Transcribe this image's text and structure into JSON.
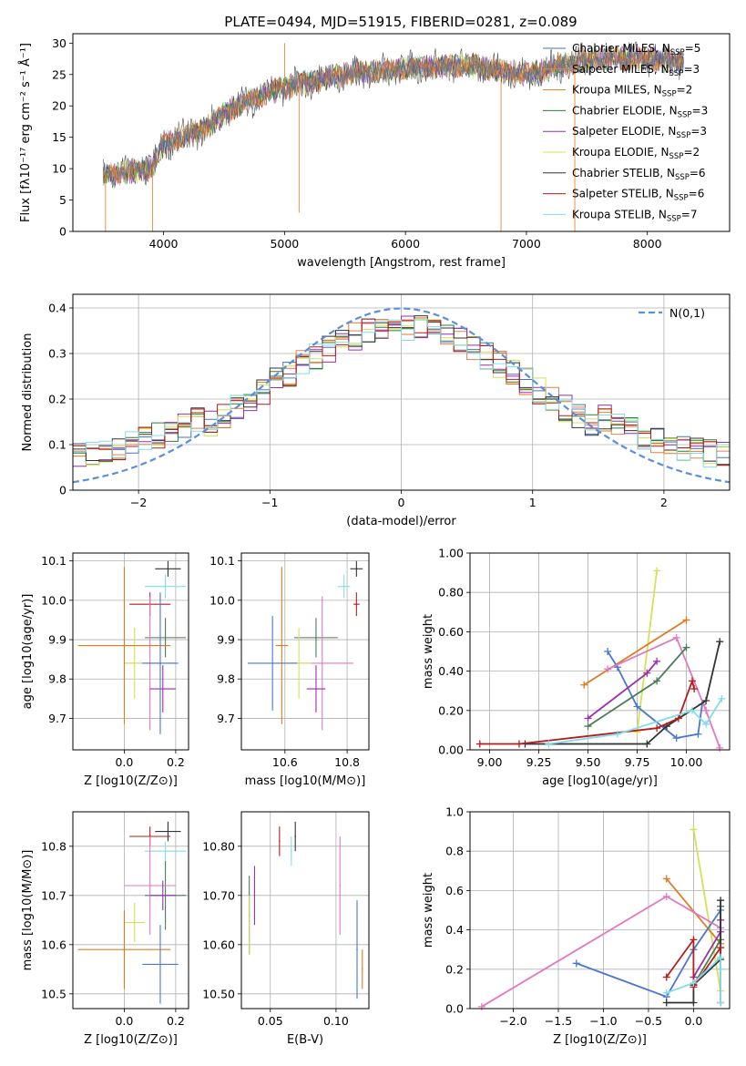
{
  "chart_data": [
    {
      "type": "line",
      "id": "spectrum",
      "title": "PLATE=0494, MJD=51915, FIBERID=0281, z=0.089",
      "xlabel": "wavelength [Angstrom, rest frame]",
      "ylabel": "Flux [fλ10⁻¹⁷ erg cm⁻² s⁻¹ Å⁻¹]",
      "xlim": [
        3250,
        8680
      ],
      "ylim": [
        0,
        31.5
      ],
      "xticks": [
        4000,
        5000,
        6000,
        7000,
        8000
      ],
      "yticks": [
        0,
        5,
        10,
        15,
        20,
        25,
        30
      ],
      "x_range_data": [
        3500,
        8300
      ],
      "continuum": {
        "x": [
          3500,
          3900,
          4000,
          4300,
          4600,
          5000,
          5500,
          6000,
          6500,
          7000,
          7500,
          8000,
          8300
        ],
        "y": [
          9,
          10,
          14,
          16,
          20,
          23,
          25,
          26,
          26.5,
          25,
          27.5,
          27.5,
          27
        ]
      },
      "legend_location": "upper right",
      "series": [
        {
          "name": "Chabrier MILES, N",
          "suffix": "=5",
          "color": "#4c72b0"
        },
        {
          "name": "Salpeter MILES, N",
          "suffix": "=3",
          "color": "#dd8452"
        },
        {
          "name": "Kroupa MILES, N",
          "suffix": "=2",
          "color": "#e07b20"
        },
        {
          "name": "Chabrier ELODIE, N",
          "suffix": "=3",
          "color": "#2e7d32"
        },
        {
          "name": "Salpeter ELODIE, N",
          "suffix": "=3",
          "color": "#9b2fae"
        },
        {
          "name": "Kroupa ELODIE, N",
          "suffix": "=2",
          "color": "#d4e157"
        },
        {
          "name": "Chabrier STELIB, N",
          "suffix": "=6",
          "color": "#333333"
        },
        {
          "name": "Salpeter STELIB, N",
          "suffix": "=6",
          "color": "#b71c1c"
        },
        {
          "name": "Kroupa STELIB, N",
          "suffix": "=7",
          "color": "#80deea"
        }
      ]
    },
    {
      "type": "area",
      "id": "residuals",
      "xlabel": "(data-model)/error",
      "ylabel": "Normed distribution",
      "xlim": [
        -2.5,
        2.5
      ],
      "ylim": [
        0,
        0.43
      ],
      "xticks": [
        -2,
        -1,
        0,
        1,
        2
      ],
      "yticks": [
        0.0,
        0.1,
        0.2,
        0.3,
        0.4
      ],
      "reference_curve": {
        "name": "N(0,1)",
        "color": "#5b8fd9",
        "style": "dashed"
      },
      "legend_location": "upper right",
      "bin_width": 0.1
    },
    {
      "type": "scatter",
      "id": "age-vs-Z",
      "xlabel": "Z [log10(Z/Z⊙)]",
      "ylabel": "age  [log10(age/yr)]",
      "xlim": [
        -0.2,
        0.25
      ],
      "ylim": [
        9.62,
        10.12
      ],
      "xticks": [
        0.0,
        0.2
      ],
      "yticks": [
        9.7,
        9.8,
        9.9,
        10.0,
        10.1
      ],
      "points": [
        {
          "x": 0.1,
          "y": 9.99,
          "xerr": 0.08,
          "yerr": 0.03,
          "color": "#b71c1c"
        },
        {
          "x": 0.17,
          "y": 10.08,
          "xerr": 0.05,
          "yerr": 0.02,
          "color": "#333333"
        },
        {
          "x": 0.16,
          "y": 10.035,
          "xerr": 0.08,
          "yerr": 0.03,
          "color": "#80deea"
        },
        {
          "x": 0.16,
          "y": 9.905,
          "xerr": 0.08,
          "yerr": 0.05,
          "color": "#4a7c59"
        },
        {
          "x": 0.1,
          "y": 9.84,
          "xerr": 0.1,
          "yerr": 0.17,
          "color": "#e377c2"
        },
        {
          "x": 0.15,
          "y": 9.775,
          "xerr": 0.05,
          "yerr": 0.06,
          "color": "#9b2fae"
        },
        {
          "x": 0.04,
          "y": 9.84,
          "xerr": 0.04,
          "yerr": 0.09,
          "color": "#d4e157"
        },
        {
          "x": 0.0,
          "y": 9.885,
          "xerr": 0.18,
          "yerr": 0.2,
          "color": "#e07b20"
        },
        {
          "x": 0.14,
          "y": 9.84,
          "xerr": 0.07,
          "yerr": 0.18,
          "color": "#4a78d0"
        }
      ]
    },
    {
      "type": "scatter",
      "id": "age-vs-mass",
      "xlabel": "mass [log10(M/M⊙)]",
      "ylabel": "",
      "xlim": [
        10.46,
        10.87
      ],
      "ylim": [
        9.62,
        10.12
      ],
      "xticks": [
        10.6,
        10.8
      ],
      "yticks": [
        9.7,
        9.8,
        9.9,
        10.0,
        10.1
      ],
      "points": [
        {
          "x": 10.83,
          "y": 9.99,
          "xerr": 0.01,
          "yerr": 0.03,
          "color": "#b71c1c"
        },
        {
          "x": 10.83,
          "y": 10.08,
          "xerr": 0.02,
          "yerr": 0.02,
          "color": "#333333"
        },
        {
          "x": 10.79,
          "y": 10.035,
          "xerr": 0.02,
          "yerr": 0.03,
          "color": "#80deea"
        },
        {
          "x": 10.7,
          "y": 9.905,
          "xerr": 0.07,
          "yerr": 0.05,
          "color": "#4a7c59"
        },
        {
          "x": 10.72,
          "y": 9.84,
          "xerr": 0.1,
          "yerr": 0.17,
          "color": "#e377c2"
        },
        {
          "x": 10.7,
          "y": 9.775,
          "xerr": 0.03,
          "yerr": 0.06,
          "color": "#9b2fae"
        },
        {
          "x": 10.645,
          "y": 9.84,
          "xerr": 0.04,
          "yerr": 0.09,
          "color": "#d4e157"
        },
        {
          "x": 10.59,
          "y": 9.885,
          "xerr": 0.02,
          "yerr": 0.2,
          "color": "#e07b20"
        },
        {
          "x": 10.56,
          "y": 9.84,
          "xerr": 0.08,
          "yerr": 0.12,
          "color": "#4a78d0"
        }
      ]
    },
    {
      "type": "line",
      "id": "mass-weight-vs-age",
      "xlabel": "age  [log10(age/yr)]",
      "ylabel": "mass weight",
      "xlim": [
        8.9,
        10.22
      ],
      "ylim": [
        0,
        1.0
      ],
      "xticks": [
        9.0,
        9.25,
        9.5,
        9.75,
        10.0
      ],
      "yticks": [
        0.0,
        0.2,
        0.4,
        0.6,
        0.8,
        1.0
      ],
      "series": [
        {
          "color": "#d4e157",
          "x": [
            9.75,
            9.85
          ],
          "y": [
            0.09,
            0.91
          ]
        },
        {
          "color": "#e07b20",
          "x": [
            9.48,
            10.0
          ],
          "y": [
            0.33,
            0.66
          ]
        },
        {
          "color": "#4a78d0",
          "x": [
            9.6,
            9.65,
            9.75,
            9.95,
            10.06,
            10.08
          ],
          "y": [
            0.5,
            0.42,
            0.22,
            0.06,
            0.08,
            0.23
          ]
        },
        {
          "color": "#e377c2",
          "x": [
            9.6,
            9.95,
            10.1,
            10.17
          ],
          "y": [
            0.41,
            0.57,
            0.2,
            0.01
          ]
        },
        {
          "color": "#9b2fae",
          "x": [
            9.5,
            9.8,
            9.85
          ],
          "y": [
            0.16,
            0.39,
            0.45
          ]
        },
        {
          "color": "#4a7c59",
          "x": [
            9.5,
            9.85,
            10.0
          ],
          "y": [
            0.12,
            0.35,
            0.52
          ]
        },
        {
          "color": "#333333",
          "x": [
            9.18,
            9.8,
            9.9,
            10.1,
            10.17
          ],
          "y": [
            0.03,
            0.03,
            0.12,
            0.25,
            0.55
          ]
        },
        {
          "color": "#b71c1c",
          "x": [
            8.95,
            9.15,
            9.85,
            9.96,
            10.03,
            10.04
          ],
          "y": [
            0.03,
            0.03,
            0.11,
            0.16,
            0.35,
            0.31
          ]
        },
        {
          "color": "#80deea",
          "x": [
            9.3,
            9.65,
            10.03,
            10.1,
            10.18
          ],
          "y": [
            0.03,
            0.08,
            0.2,
            0.13,
            0.26
          ]
        }
      ]
    },
    {
      "type": "scatter",
      "id": "mass-vs-Z",
      "xlabel": "Z [log10(Z/Z⊙)]",
      "ylabel": "mass [log10(M/M⊙)]",
      "xlim": [
        -0.2,
        0.25
      ],
      "ylim": [
        10.47,
        10.87
      ],
      "xticks": [
        0.0,
        0.2
      ],
      "yticks": [
        10.5,
        10.6,
        10.7,
        10.8
      ],
      "points": [
        {
          "x": 0.1,
          "y": 10.82,
          "xerr": 0.08,
          "yerr": 0.02,
          "color": "#b71c1c"
        },
        {
          "x": 0.17,
          "y": 10.83,
          "xerr": 0.05,
          "yerr": 0.02,
          "color": "#333333"
        },
        {
          "x": 0.16,
          "y": 10.79,
          "xerr": 0.08,
          "yerr": 0.02,
          "color": "#80deea"
        },
        {
          "x": 0.16,
          "y": 10.7,
          "xerr": 0.08,
          "yerr": 0.07,
          "color": "#4a7c59"
        },
        {
          "x": 0.1,
          "y": 10.72,
          "xerr": 0.1,
          "yerr": 0.1,
          "color": "#e377c2"
        },
        {
          "x": 0.15,
          "y": 10.7,
          "xerr": 0.05,
          "yerr": 0.03,
          "color": "#9b2fae"
        },
        {
          "x": 0.04,
          "y": 10.645,
          "xerr": 0.04,
          "yerr": 0.04,
          "color": "#d4e157"
        },
        {
          "x": 0.0,
          "y": 10.59,
          "xerr": 0.18,
          "yerr": 0.08,
          "color": "#e07b20"
        },
        {
          "x": 0.14,
          "y": 10.56,
          "xerr": 0.07,
          "yerr": 0.08,
          "color": "#4a78d0"
        }
      ]
    },
    {
      "type": "scatter",
      "id": "mass-vs-EBV",
      "xlabel": "E(B-V)",
      "ylabel": "",
      "xlim": [
        0.028,
        0.125
      ],
      "ylim": [
        10.47,
        10.87
      ],
      "xticks": [
        0.05,
        0.1
      ],
      "yticks": [
        10.5,
        10.6,
        10.7,
        10.8
      ],
      "points": [
        {
          "x": 0.057,
          "y": 10.81,
          "xerr": 0,
          "yerr": 0.03,
          "color": "#b71c1c"
        },
        {
          "x": 0.069,
          "y": 10.82,
          "xerr": 0,
          "yerr": 0.03,
          "color": "#333333"
        },
        {
          "x": 0.066,
          "y": 10.79,
          "xerr": 0,
          "yerr": 0.03,
          "color": "#80deea"
        },
        {
          "x": 0.034,
          "y": 10.66,
          "xerr": 0,
          "yerr": 0.08,
          "color": "#4a7c59"
        },
        {
          "x": 0.103,
          "y": 10.72,
          "xerr": 0,
          "yerr": 0.1,
          "color": "#e377c2"
        },
        {
          "x": 0.038,
          "y": 10.7,
          "xerr": 0,
          "yerr": 0.06,
          "color": "#9b2fae"
        },
        {
          "x": 0.034,
          "y": 10.64,
          "xerr": 0,
          "yerr": 0.06,
          "color": "#d4e157"
        },
        {
          "x": 0.12,
          "y": 10.55,
          "xerr": 0,
          "yerr": 0.04,
          "color": "#e07b20"
        },
        {
          "x": 0.116,
          "y": 10.59,
          "xerr": 0,
          "yerr": 0.1,
          "color": "#4a78d0"
        }
      ]
    },
    {
      "type": "line",
      "id": "mass-weight-vs-Z",
      "xlabel": "Z [log10(Z/Z⊙)]",
      "ylabel": "mass weight",
      "xlim": [
        -2.48,
        0.4
      ],
      "ylim": [
        0,
        1.0
      ],
      "xticks": [
        -2.0,
        -1.5,
        -1.0,
        -0.5,
        0.0
      ],
      "yticks": [
        0.0,
        0.2,
        0.4,
        0.6,
        0.8,
        1.0
      ],
      "series": [
        {
          "color": "#d4e157",
          "x": [
            0.0,
            0.3
          ],
          "y": [
            0.91,
            0.09
          ]
        },
        {
          "color": "#e07b20",
          "x": [
            -0.3,
            0.3
          ],
          "y": [
            0.66,
            0.33
          ]
        },
        {
          "color": "#4a78d0",
          "x": [
            -1.3,
            -0.3,
            0.0,
            0.3
          ],
          "y": [
            0.23,
            0.06,
            0.3,
            0.5
          ]
        },
        {
          "color": "#e377c2",
          "x": [
            -2.35,
            -0.3,
            0.3
          ],
          "y": [
            0.01,
            0.57,
            0.41
          ]
        },
        {
          "color": "#9b2fae",
          "x": [
            0.0,
            0.3,
            0.3
          ],
          "y": [
            0.16,
            0.39,
            0.45
          ]
        },
        {
          "color": "#4a7c59",
          "x": [
            0.0,
            0.3,
            0.3
          ],
          "y": [
            0.12,
            0.35,
            0.52
          ]
        },
        {
          "color": "#333333",
          "x": [
            -0.3,
            0.0,
            0.0,
            0.3,
            0.3
          ],
          "y": [
            0.03,
            0.03,
            0.12,
            0.25,
            0.55
          ]
        },
        {
          "color": "#b71c1c",
          "x": [
            -0.3,
            0.0,
            0.0,
            0.3,
            0.3
          ],
          "y": [
            0.16,
            0.35,
            0.11,
            0.31,
            0.03
          ]
        },
        {
          "color": "#80deea",
          "x": [
            -0.3,
            0.0,
            0.3,
            0.3,
            0.3
          ],
          "y": [
            0.08,
            0.13,
            0.26,
            0.2,
            0.03
          ]
        }
      ]
    }
  ]
}
